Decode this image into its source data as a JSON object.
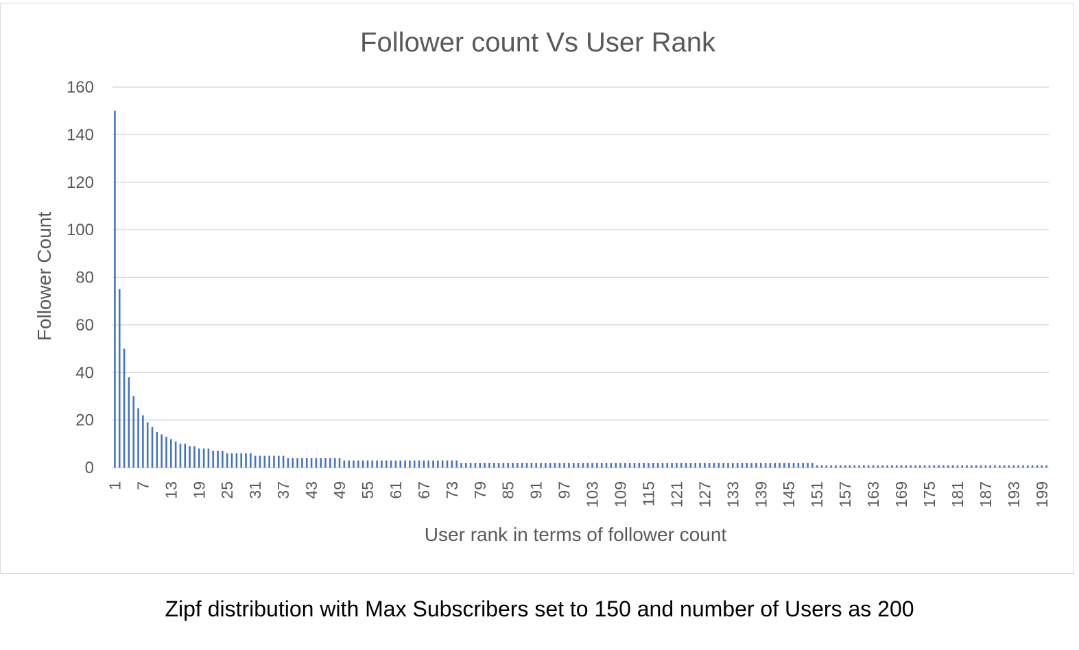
{
  "caption": "Zipf distribution with Max Subscribers set to 150 and number of Users as 200",
  "chart_data": {
    "type": "bar",
    "title": "Follower count Vs User Rank",
    "xlabel": "User rank in terms of follower count",
    "ylabel": "Follower Count",
    "ylim": [
      0,
      160
    ],
    "yticks": [
      0,
      20,
      40,
      60,
      80,
      100,
      120,
      140,
      160
    ],
    "xtick_labels": [
      "1",
      "7",
      "13",
      "19",
      "25",
      "31",
      "37",
      "43",
      "49",
      "55",
      "61",
      "67",
      "73",
      "79",
      "85",
      "91",
      "97",
      "103",
      "109",
      "115",
      "121",
      "127",
      "133",
      "139",
      "145",
      "151",
      "157",
      "163",
      "169",
      "175",
      "181",
      "187",
      "193",
      "199"
    ],
    "categories_range": [
      1,
      200
    ],
    "values": [
      150,
      75,
      50,
      38,
      30,
      25,
      22,
      19,
      17,
      15,
      14,
      13,
      12,
      11,
      10,
      10,
      9,
      9,
      8,
      8,
      8,
      7,
      7,
      7,
      6,
      6,
      6,
      6,
      6,
      6,
      5,
      5,
      5,
      5,
      5,
      5,
      5,
      4,
      4,
      4,
      4,
      4,
      4,
      4,
      4,
      4,
      4,
      4,
      4,
      3,
      3,
      3,
      3,
      3,
      3,
      3,
      3,
      3,
      3,
      3,
      3,
      3,
      3,
      3,
      3,
      3,
      3,
      3,
      3,
      3,
      3,
      3,
      3,
      3,
      2,
      2,
      2,
      2,
      2,
      2,
      2,
      2,
      2,
      2,
      2,
      2,
      2,
      2,
      2,
      2,
      2,
      2,
      2,
      2,
      2,
      2,
      2,
      2,
      2,
      2,
      2,
      2,
      2,
      2,
      2,
      2,
      2,
      2,
      2,
      2,
      2,
      2,
      2,
      2,
      2,
      2,
      2,
      2,
      2,
      2,
      2,
      2,
      2,
      2,
      2,
      2,
      2,
      2,
      2,
      2,
      2,
      2,
      2,
      2,
      2,
      2,
      2,
      2,
      2,
      2,
      2,
      2,
      2,
      2,
      2,
      2,
      2,
      2,
      2,
      2,
      1,
      1,
      1,
      1,
      1,
      1,
      1,
      1,
      1,
      1,
      1,
      1,
      1,
      1,
      1,
      1,
      1,
      1,
      1,
      1,
      1,
      1,
      1,
      1,
      1,
      1,
      1,
      1,
      1,
      1,
      1,
      1,
      1,
      1,
      1,
      1,
      1,
      1,
      1,
      1,
      1,
      1,
      1,
      1,
      1,
      1,
      1,
      1,
      1,
      1
    ],
    "colors": {
      "bar": "#4472c4",
      "grid": "#d9d9d9",
      "text": "#595959"
    },
    "grid": true,
    "legend": "none"
  }
}
